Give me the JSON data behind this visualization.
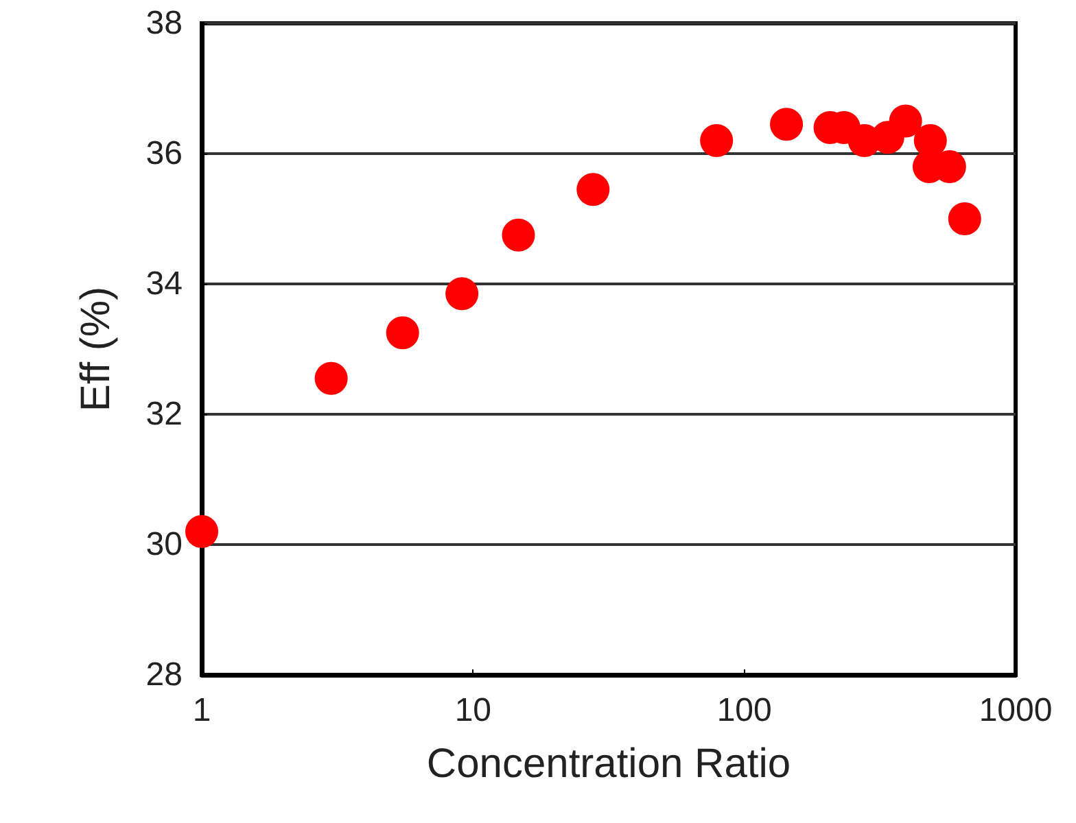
{
  "chart_data": {
    "type": "scatter",
    "xlabel": "Concentration Ratio",
    "ylabel": "Eff (%)",
    "x": [
      1,
      3,
      5.5,
      9.1,
      14.7,
      27.7,
      79,
      143,
      207,
      233,
      277,
      338,
      393,
      485,
      480,
      571,
      649
    ],
    "series": [
      {
        "color": "#ff0000",
        "values": [
          30.2,
          32.55,
          33.25,
          33.85,
          34.75,
          35.45,
          36.2,
          36.45,
          36.4,
          36.4,
          36.2,
          36.25,
          36.5,
          36.2,
          35.8,
          35.8,
          35.0
        ]
      }
    ],
    "log": "x",
    "xlim": [
      1,
      1000
    ],
    "xticks": [
      1,
      10,
      100,
      1000
    ],
    "ylim": [
      28,
      38
    ],
    "yticks": [
      28,
      30,
      32,
      34,
      36,
      38
    ],
    "grid": "y",
    "marker": "circle"
  }
}
